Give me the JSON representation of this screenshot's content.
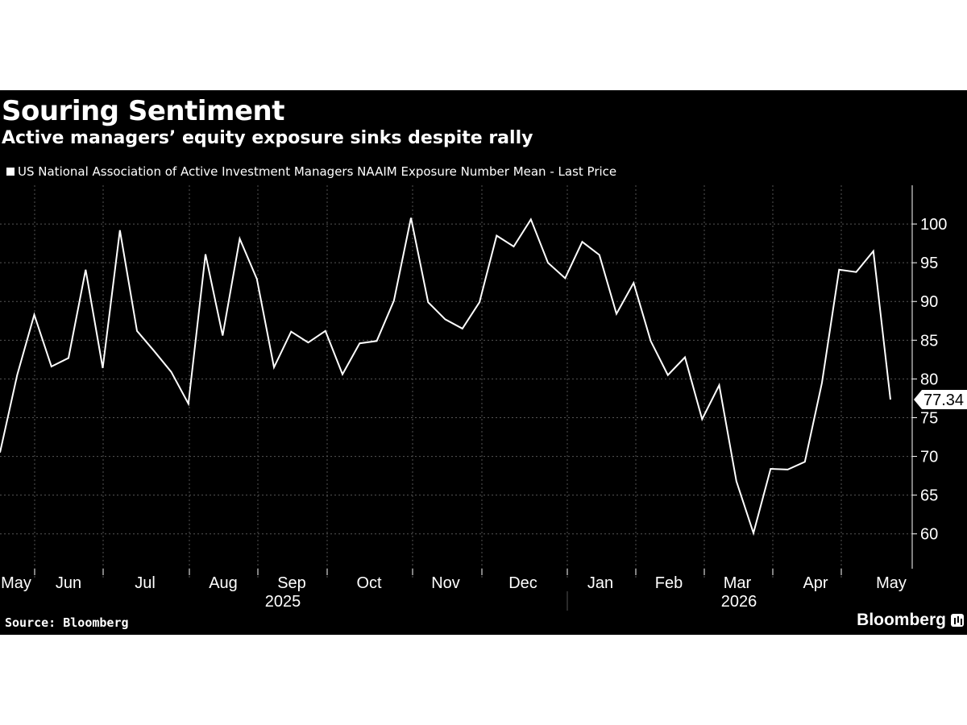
{
  "title": "Souring Sentiment",
  "subtitle": "Active managers’ equity exposure sinks despite rally",
  "source": "Source: Bloomberg",
  "brand": "Bloomberg",
  "colors": {
    "background": "#000000",
    "line": "#ffffff",
    "grid": "#555555",
    "text": "#ffffff"
  },
  "chart_data": {
    "type": "line",
    "series": [
      {
        "name": "US National Association of Active Investment Managers NAAIM Exposure Number Mean - Last Price",
        "values": [
          70.5,
          80.5,
          88.3,
          81.6,
          82.7,
          94.1,
          81.4,
          99.2,
          86.2,
          83.6,
          80.9,
          76.8,
          96.1,
          85.6,
          98.1,
          92.9,
          81.5,
          86.1,
          84.7,
          86.2,
          80.6,
          84.6,
          84.9,
          90.1,
          100.8,
          89.9,
          87.7,
          86.5,
          89.9,
          98.5,
          97.1,
          100.6,
          95.0,
          93.0,
          97.7,
          96.0,
          88.4,
          92.4,
          84.9,
          80.5,
          82.8,
          74.8,
          79.2,
          66.8,
          60.1,
          68.4,
          68.3,
          69.3,
          79.5,
          94.1,
          93.8,
          96.5,
          77.34
        ]
      }
    ],
    "last_value_label": "77.34",
    "y_ticks": [
      60,
      65,
      70,
      75,
      80,
      85,
      90,
      95,
      100
    ],
    "ylim": [
      55.5,
      105
    ],
    "x_tick_labels": [
      "May",
      "Jun",
      "Jul",
      "Aug",
      "Sep",
      "Oct",
      "Nov",
      "Dec",
      "Jan",
      "Feb",
      "Mar",
      "Apr",
      "May"
    ],
    "year_labels": [
      "2025",
      "2026"
    ],
    "grid": true,
    "legend_position": "top-left"
  }
}
